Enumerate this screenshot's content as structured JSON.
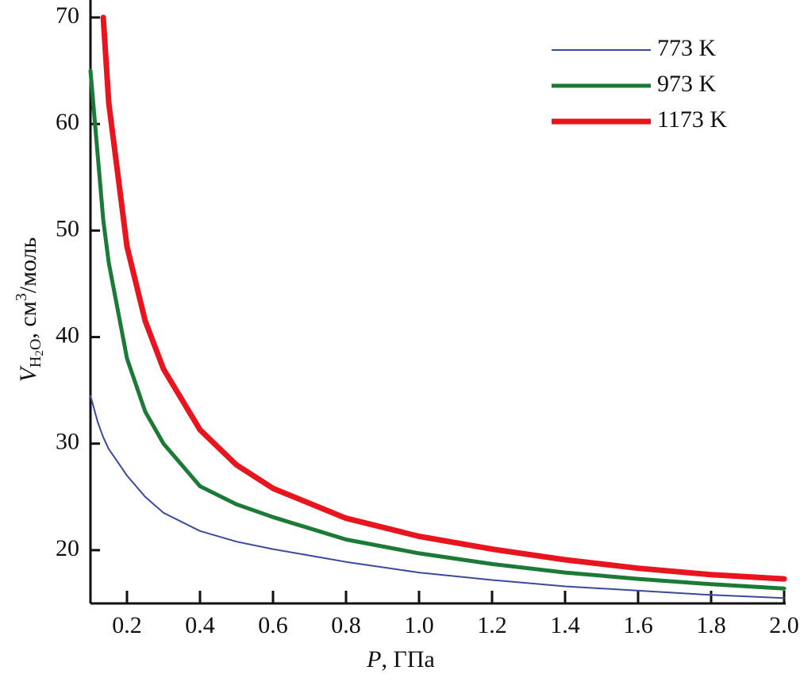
{
  "chart_data": {
    "type": "line",
    "x": [
      0.1,
      0.12,
      0.135,
      0.15,
      0.2,
      0.25,
      0.3,
      0.4,
      0.5,
      0.6,
      0.8,
      1.0,
      1.2,
      1.4,
      1.6,
      1.8,
      2.0
    ],
    "series": [
      {
        "name": "773 K",
        "color": "#3b4a9c",
        "width": 2,
        "values": [
          34.5,
          32,
          30.6,
          29.5,
          27,
          25,
          23.5,
          21.8,
          20.8,
          20.1,
          18.9,
          17.9,
          17.2,
          16.6,
          16.2,
          15.8,
          15.5
        ]
      },
      {
        "name": "973 K",
        "color": "#1b7b36",
        "width": 5,
        "values": [
          65,
          57,
          51,
          47,
          38,
          33,
          30,
          26,
          24.3,
          23.1,
          21,
          19.7,
          18.7,
          17.9,
          17.3,
          16.8,
          16.4
        ]
      },
      {
        "name": "1173 K",
        "color": "#e8141e",
        "width": 7,
        "values": [
          null,
          null,
          70,
          62,
          48.5,
          41.5,
          37,
          31.3,
          28,
          25.8,
          23,
          21.3,
          20.1,
          19.1,
          18.3,
          17.7,
          17.3
        ]
      }
    ],
    "xlim": [
      0.1,
      2.0
    ],
    "xticks": [
      0.2,
      0.4,
      0.6,
      0.8,
      {
        "value": 1,
        "label": "1.0"
      },
      1.2,
      1.4,
      1.6,
      1.8,
      {
        "value": 2,
        "label": "2.0"
      }
    ],
    "ylim": [
      15,
      70
    ],
    "yticks": [
      20,
      30,
      40,
      50,
      60,
      70
    ],
    "xlabel": {
      "symbol": "P",
      "text": ", ГПа"
    },
    "ylabel": {
      "symbol": "V",
      "subscript": "H",
      "subscript2": "2",
      "subscript3": "O",
      "text": ", см",
      "sup": "3",
      "unit": "/моль"
    },
    "legend": "upper right"
  }
}
